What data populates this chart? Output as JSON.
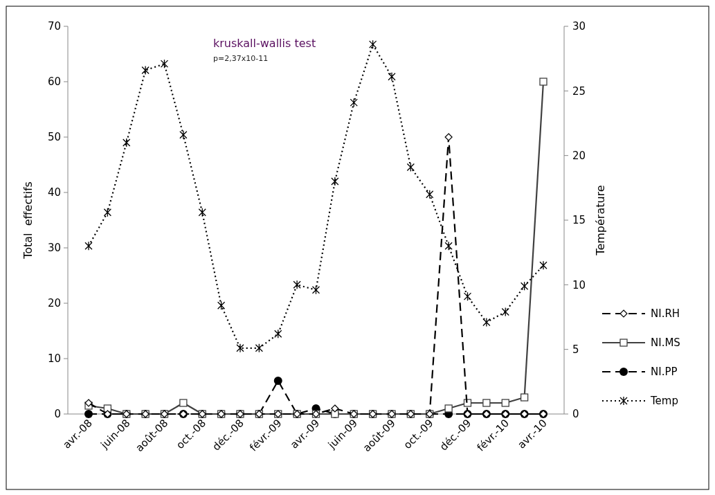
{
  "chart_data": {
    "type": "line",
    "ylabel": "Total  effectifs",
    "y2label": "Température",
    "annotations": [
      "kruskall-wallis test",
      "p=2,37x10-11"
    ],
    "categories": [
      "avr.-08",
      null,
      "juin-08",
      null,
      "août-08",
      null,
      "oct.-08",
      null,
      "déc.-08",
      null,
      "févr.-09",
      null,
      "avr.-09",
      null,
      "juin-09",
      null,
      "août-09",
      null,
      "oct.-09",
      null,
      "déc.-09",
      null,
      "févr.-10",
      null,
      "avr.-10"
    ],
    "ylim": [
      0,
      70
    ],
    "yticks": [
      0,
      10,
      20,
      30,
      40,
      50,
      60,
      70
    ],
    "y2lim": [
      0,
      30
    ],
    "y2ticks": [
      0,
      5,
      10,
      15,
      20,
      25,
      30
    ],
    "legend": "right",
    "grid": false,
    "series": [
      {
        "name": "NI.RH",
        "color": "#000000",
        "marker": "diamond",
        "line_style": "dashed",
        "values": [
          2,
          0,
          0,
          0,
          0,
          0,
          0,
          0,
          0,
          0,
          0,
          0,
          0,
          1,
          0,
          0,
          0,
          0,
          0,
          50,
          0,
          0,
          0,
          0,
          0
        ]
      },
      {
        "name": "NI.MS",
        "color": "#404040",
        "marker": "square",
        "line_style": "solid",
        "values": [
          1.5,
          1,
          0,
          0,
          0,
          2,
          0,
          0,
          0,
          0,
          0,
          0,
          0,
          0,
          0,
          0,
          0,
          0,
          0,
          1,
          2,
          2,
          2,
          3,
          60
        ]
      },
      {
        "name": "NI.PP",
        "color": "#000000",
        "marker": "circle",
        "line_style": "dashed",
        "values": [
          0,
          0,
          0,
          0,
          0,
          0,
          0,
          0,
          0,
          0,
          6,
          0,
          1,
          0,
          0,
          0,
          0,
          0,
          0,
          0,
          0,
          0,
          0,
          0,
          0
        ]
      },
      {
        "name": "Temp",
        "color": "#000000",
        "marker": "cross",
        "line_style": "dotted",
        "axis": "y2",
        "values": [
          13,
          15.6,
          21,
          26.6,
          27.1,
          21.6,
          15.6,
          8.4,
          5.1,
          5.1,
          6.2,
          10,
          9.6,
          18,
          24.1,
          28.6,
          26.1,
          19.1,
          17,
          13,
          9.1,
          7.1,
          7.9,
          9.9,
          11.5
        ]
      }
    ]
  }
}
